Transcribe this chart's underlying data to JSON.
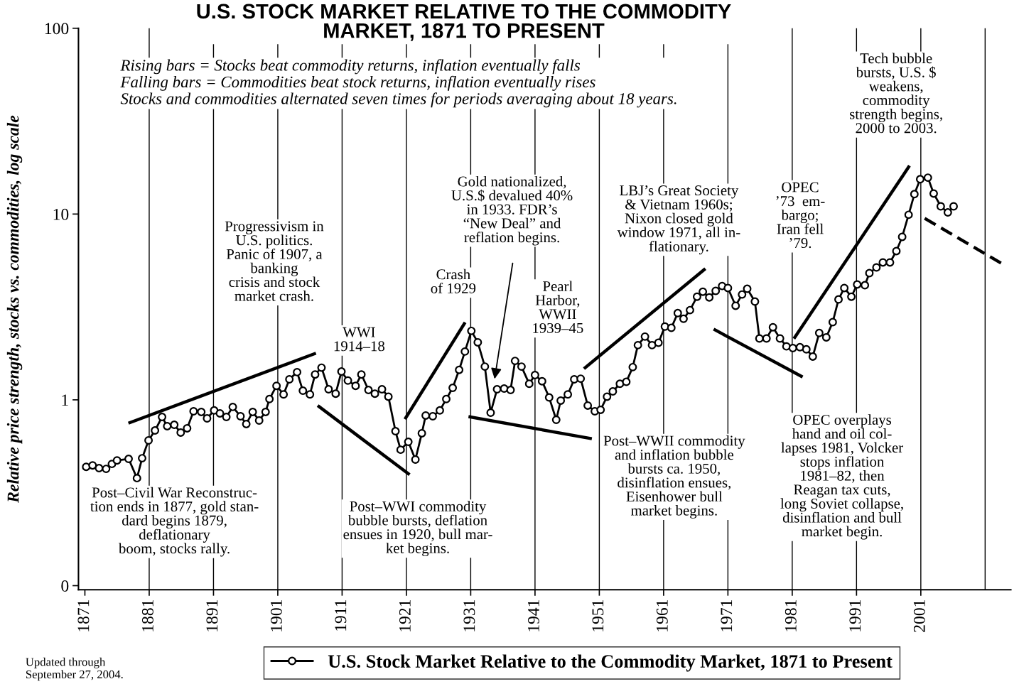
{
  "chart_data": {
    "type": "line",
    "title": "U.S. STOCK MARKET RELATIVE TO THE COMMODITY\nMARKET, 1871 TO PRESENT",
    "subtitle": "Rising bars = Stocks beat commodity returns, inflation eventually falls\nFalling bars = Commodities beat stock returns, inflation eventually rises\nStocks and commodities alternated seven times for periods averaging about 18 years.",
    "ylabel": "Relative price strength, stocks vs. commodities, log scale",
    "log": true,
    "xlim": [
      1870,
      2015
    ],
    "ylim": [
      0.095,
      100
    ],
    "xticks": [
      1871,
      1881,
      1891,
      1901,
      1911,
      1921,
      1931,
      1941,
      1951,
      1961,
      1971,
      1981,
      1991,
      2001
    ],
    "yticks": [
      {
        "value": 0.1,
        "label": "0"
      },
      1,
      10,
      100
    ],
    "grid": false,
    "legend": "bottom",
    "series": [
      {
        "name": "U.S. Stock Market Relative to the Commodity Market, 1871 to Present",
        "color": "#000000",
        "marker": "circle",
        "line_style": "solid",
        "x": [
          1871.2,
          1872.2,
          1873.2,
          1874.3,
          1875.2,
          1876.0,
          1877.8,
          1879.1,
          1879.9,
          1880.9,
          1881.9,
          1883.0,
          1883.8,
          1884.9,
          1885.9,
          1886.9,
          1887.9,
          1889.1,
          1890.0,
          1891.1,
          1892.0,
          1893.0,
          1894.0,
          1895.2,
          1896.1,
          1897.1,
          1898.1,
          1899.1,
          1899.7,
          1900.8,
          1901.9,
          1902.8,
          1904.0,
          1904.9,
          1906.0,
          1906.8,
          1907.8,
          1908.9,
          1910.0,
          1910.9,
          1911.9,
          1913.1,
          1914.0,
          1915.1,
          1916.1,
          1917.2,
          1918.2,
          1919.3,
          1920.1,
          1921.3,
          1922.4,
          1923.4,
          1924.0,
          1925.1,
          1926.2,
          1927.2,
          1928.2,
          1929.2,
          1930.1,
          1931.1,
          1932.1,
          1933.2,
          1934.1,
          1935.1,
          1936.2,
          1937.2,
          1937.9,
          1938.9,
          1940.1,
          1941.0,
          1942.1,
          1943.2,
          1944.3,
          1945.0,
          1946.1,
          1947.1,
          1948.1,
          1949.2,
          1950.3,
          1951.2,
          1952.2,
          1953.1,
          1954.2,
          1955.2,
          1956.2,
          1957.0,
          1958.1,
          1959.2,
          1960.2,
          1961.2,
          1962.2,
          1963.2,
          1964.1,
          1965.1,
          1966.2,
          1967.1,
          1968.1,
          1969.1,
          1970.1,
          1971.0,
          1972.2,
          1973.2,
          1974.0,
          1975.2,
          1975.9,
          1977.0,
          1978.0,
          1979.1,
          1980.1,
          1981.1,
          1982.2,
          1983.2,
          1984.2,
          1985.2,
          1986.3,
          1987.3,
          1988.2,
          1989.1,
          1990.2,
          1991.1,
          1992.3,
          1993.0,
          1994.1,
          1995.1,
          1996.2,
          1997.2,
          1998.1,
          1999.1,
          2000.0,
          2000.9,
          2002.1,
          2003.0,
          2004.1,
          2005.2,
          2006.1
        ],
        "values": [
          0.436,
          0.444,
          0.429,
          0.425,
          0.452,
          0.472,
          0.481,
          0.379,
          0.485,
          0.605,
          0.684,
          0.809,
          0.722,
          0.734,
          0.667,
          0.703,
          0.868,
          0.861,
          0.795,
          0.877,
          0.846,
          0.809,
          0.916,
          0.816,
          0.741,
          0.861,
          0.774,
          0.861,
          1.01,
          1.19,
          1.07,
          1.29,
          1.41,
          1.12,
          1.07,
          1.37,
          1.49,
          1.14,
          1.08,
          1.42,
          1.27,
          1.19,
          1.37,
          1.13,
          1.08,
          1.14,
          1.04,
          0.678,
          0.539,
          0.594,
          0.477,
          0.661,
          0.824,
          0.816,
          0.877,
          1.01,
          1.16,
          1.45,
          1.82,
          2.35,
          2.04,
          1.51,
          0.853,
          1.14,
          1.15,
          1.13,
          1.62,
          1.51,
          1.22,
          1.36,
          1.26,
          1.03,
          0.781,
          0.991,
          1.07,
          1.29,
          1.3,
          0.932,
          0.868,
          0.884,
          1.04,
          1.11,
          1.22,
          1.25,
          1.5,
          1.97,
          2.19,
          1.97,
          2.03,
          2.48,
          2.44,
          2.93,
          2.73,
          3.04,
          3.59,
          3.82,
          3.56,
          3.86,
          4.1,
          4.0,
          3.21,
          3.69,
          3.96,
          3.38,
          2.14,
          2.14,
          2.46,
          2.14,
          1.94,
          1.9,
          1.92,
          1.87,
          1.71,
          2.29,
          2.17,
          2.62,
          3.47,
          4.0,
          3.59,
          4.18,
          4.14,
          4.81,
          5.16,
          5.49,
          5.49,
          6.32,
          7.54,
          9.91,
          12.8,
          15.4,
          15.7,
          12.9,
          11.0,
          10.2,
          11.0
        ]
      },
      {
        "type": "line",
        "color": "#000000",
        "marker": "none",
        "line_style": "solid",
        "x": [
          1878.0,
          1906.7
        ],
        "values": [
          0.754,
          1.77
        ]
      },
      {
        "type": "line",
        "color": "#000000",
        "marker": "none",
        "line_style": "solid",
        "x": [
          1907.4,
          1921.3
        ],
        "values": [
          0.92,
          0.4
        ]
      },
      {
        "type": "line",
        "color": "#000000",
        "marker": "none",
        "line_style": "solid",
        "x": [
          1920.9,
          1930.0
        ],
        "values": [
          0.8,
          2.57
        ]
      },
      {
        "type": "line",
        "color": "#000000",
        "marker": "none",
        "line_style": "solid",
        "x": [
          1930.9,
          1949.6
        ],
        "values": [
          0.81,
          0.62
        ]
      },
      {
        "type": "line",
        "color": "#000000",
        "marker": "none",
        "line_style": "solid",
        "x": [
          1948.8,
          1967.3
        ],
        "values": [
          1.49,
          5.02
        ]
      },
      {
        "type": "line",
        "color": "#000000",
        "marker": "none",
        "line_style": "solid",
        "x": [
          1969.0,
          1982.4
        ],
        "values": [
          2.38,
          1.34
        ]
      },
      {
        "type": "line",
        "color": "#000000",
        "marker": "none",
        "line_style": "solid",
        "x": [
          1981.4,
          1999.1
        ],
        "values": [
          2.17,
          17.9
        ]
      },
      {
        "type": "line",
        "color": "#000000",
        "marker": "none",
        "line_style": "dashed",
        "x": [
          2001.6,
          2013.7
        ],
        "values": [
          9.48,
          5.39
        ]
      }
    ],
    "ref_lines": [
      {
        "axis": "x",
        "value": 1881
      },
      {
        "axis": "x",
        "value": 1891
      },
      {
        "axis": "x",
        "value": 1901
      },
      {
        "axis": "x",
        "value": 1911
      },
      {
        "axis": "x",
        "value": 1921
      },
      {
        "axis": "x",
        "value": 1931
      },
      {
        "axis": "x",
        "value": 1941
      },
      {
        "axis": "x",
        "value": 1951
      },
      {
        "axis": "x",
        "value": 1961
      },
      {
        "axis": "x",
        "value": 1971
      },
      {
        "axis": "x",
        "value": 1981
      },
      {
        "axis": "x",
        "value": 1991
      },
      {
        "axis": "x",
        "value": 2001
      },
      {
        "axis": "x",
        "value": 2011
      }
    ],
    "annotations": [
      "Post–Civil War Reconstruc-\ntion ends in 1877, gold stan-\ndard begins 1879,\ndeflationary\nboom, stocks rally.",
      "Progressivism in\nU.S. politics.\nPanic of 1907, a\nbanking\ncrisis and stock\nmarket crash.",
      "WWI\n1914–18",
      "Post–WWI commodity\nbubble bursts, deflation\nensues in 1920, bull mar-\nket begins.",
      "Crash\nof 1929",
      "Gold nationalized,\nU.S.$ devalued 40%\nin 1933. FDR’s\n“New Deal” and\nreflation begins.",
      "Pearl\nHarbor,\nWWII\n1939–45",
      "LBJ’s Great Society\n& Vietnam 1960s;\nNixon closed gold\nwindow 1971, all in-\nflationary.",
      "OPEC\n’73  em-\nbargo;\nIran fell\n’79.",
      "Tech bubble\nbursts, U.S. $\nweakens,\ncommodity\nstrength begins,\n2000 to 2003.",
      "Post–WWII commodity\nand inflation bubble\nbursts ca. 1950,\ndisinflation ensues,\nEisenhower bull\nmarket begins.",
      "OPEC overplays\nhand and oil col-\nlapses 1981, Volcker\nstops inflation\n1981–82, then\nReagan tax cuts,\nlong Soviet collapse,\ndisinflation and bull\nmarket begin.",
      "Updated through\nSeptember 27, 2004."
    ]
  }
}
